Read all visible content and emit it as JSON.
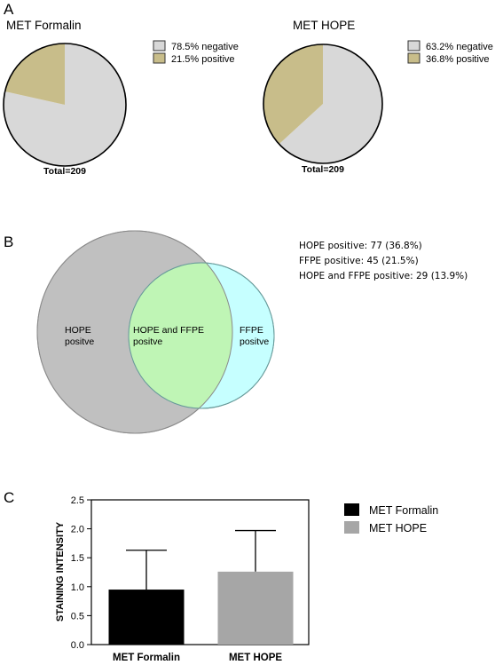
{
  "colors": {
    "negative": "#d8d8d8",
    "positive": "#c8bd8a",
    "hope_circle": "#c0c0c0",
    "overlap": "#bff5b5",
    "ffpe_circle": "#c6ffff",
    "bar_formalin": "#000000",
    "bar_hope": "#a6a6a6"
  },
  "panels": {
    "a": "A",
    "b": "B",
    "c": "C"
  },
  "chart_data": [
    {
      "type": "pie",
      "title": "MET Formalin",
      "total_label": "Total=209",
      "slices": [
        {
          "label": "78.5% negative",
          "value": 78.5,
          "color": "#d8d8d8"
        },
        {
          "label": "21.5% positive",
          "value": 21.5,
          "color": "#c8bd8a"
        }
      ]
    },
    {
      "type": "pie",
      "title": "MET HOPE",
      "total_label": "Total=209",
      "slices": [
        {
          "label": "63.2% negative",
          "value": 63.2,
          "color": "#d8d8d8"
        },
        {
          "label": "36.8% positive",
          "value": 36.8,
          "color": "#c8bd8a"
        }
      ]
    },
    {
      "type": "venn",
      "sets": [
        {
          "label": "HOPE\npositve",
          "count": 77
        },
        {
          "label": "FFPE\npositve",
          "count": 45
        }
      ],
      "overlap": {
        "label": "HOPE and FFPE\npositve",
        "count": 29
      },
      "notes": [
        "HOPE positive: 77 (36.8%)",
        "FFPE positive: 45 (21.5%)",
        "HOPE and FFPE positive: 29 (13.9%)"
      ]
    },
    {
      "type": "bar",
      "categories": [
        "MET Formalin",
        "MET HOPE"
      ],
      "values": [
        0.95,
        1.26
      ],
      "errors": [
        0.68,
        0.71
      ],
      "ylabel": "STAINING INTENSITY",
      "ylim": [
        0,
        2.5
      ],
      "yticks": [
        "0.0",
        "0.5",
        "1.0",
        "1.5",
        "2.0",
        "2.5"
      ],
      "legend": [
        "MET Formalin",
        "MET HOPE"
      ],
      "legend_position": "right"
    }
  ]
}
